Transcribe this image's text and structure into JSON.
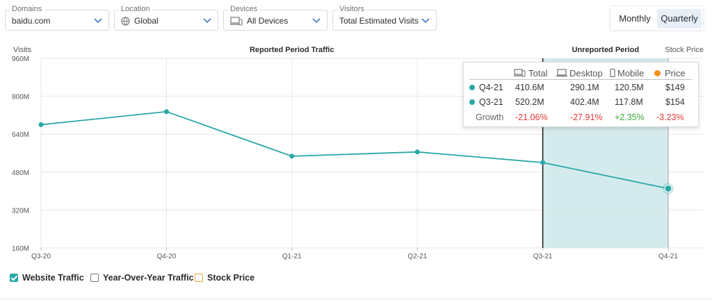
{
  "filters": {
    "domains": {
      "label": "Domains",
      "value": "baidu.com"
    },
    "location": {
      "label": "Location",
      "value": "Global"
    },
    "devices": {
      "label": "Devices",
      "value": "All Devices"
    },
    "visitors": {
      "label": "Visitors",
      "value": "Total Estimated Visits"
    }
  },
  "period_toggle": {
    "monthly": "Monthly",
    "quarterly": "Quarterly",
    "selected": "Quarterly"
  },
  "tooltip": {
    "headers": {
      "total": "Total",
      "desktop": "Desktop",
      "mobile": "Mobile",
      "price": "Price"
    },
    "rows": [
      {
        "label": "Q4-21",
        "total": "410.6M",
        "desktop": "290.1M",
        "mobile": "120.5M",
        "price": "$149"
      },
      {
        "label": "Q3-21",
        "total": "520.2M",
        "desktop": "402.4M",
        "mobile": "117.8M",
        "price": "$154"
      }
    ],
    "growth": {
      "label": "Growth",
      "total": "-21.06%",
      "desktop": "-27.91%",
      "mobile": "+2.35%",
      "price": "-3.23%"
    }
  },
  "legend": {
    "website_traffic": {
      "label": "Website Traffic",
      "checked": true
    },
    "yoy_traffic": {
      "label": "Year-Over-Year Traffic",
      "checked": false
    },
    "stock_price": {
      "label": "Stock Price",
      "checked": false
    }
  },
  "colors": {
    "series": "#2aa8a9",
    "shade": "#cde8ea",
    "price": "#f0901e",
    "negative": "#e03636",
    "positive": "#3fa53a"
  },
  "chart_data": {
    "type": "line",
    "ylabel": "Visits",
    "y2label": "Stock Price",
    "reported_label": "Reported Period Traffic",
    "unreported_label": "Unreported Period",
    "unreported_from": "Q3-21",
    "categories": [
      "Q3-20",
      "Q4-20",
      "Q1-21",
      "Q2-21",
      "Q3-21",
      "Q4-21"
    ],
    "series": [
      {
        "values": [
          680,
          735,
          547,
          565,
          520.2,
          410.6
        ]
      }
    ],
    "ylim": [
      160,
      960
    ],
    "yticks": [
      160,
      320,
      480,
      640,
      800,
      960
    ],
    "ytick_labels": [
      "160M",
      "320M",
      "480M",
      "640M",
      "800M",
      "960M"
    ],
    "grid": true
  }
}
